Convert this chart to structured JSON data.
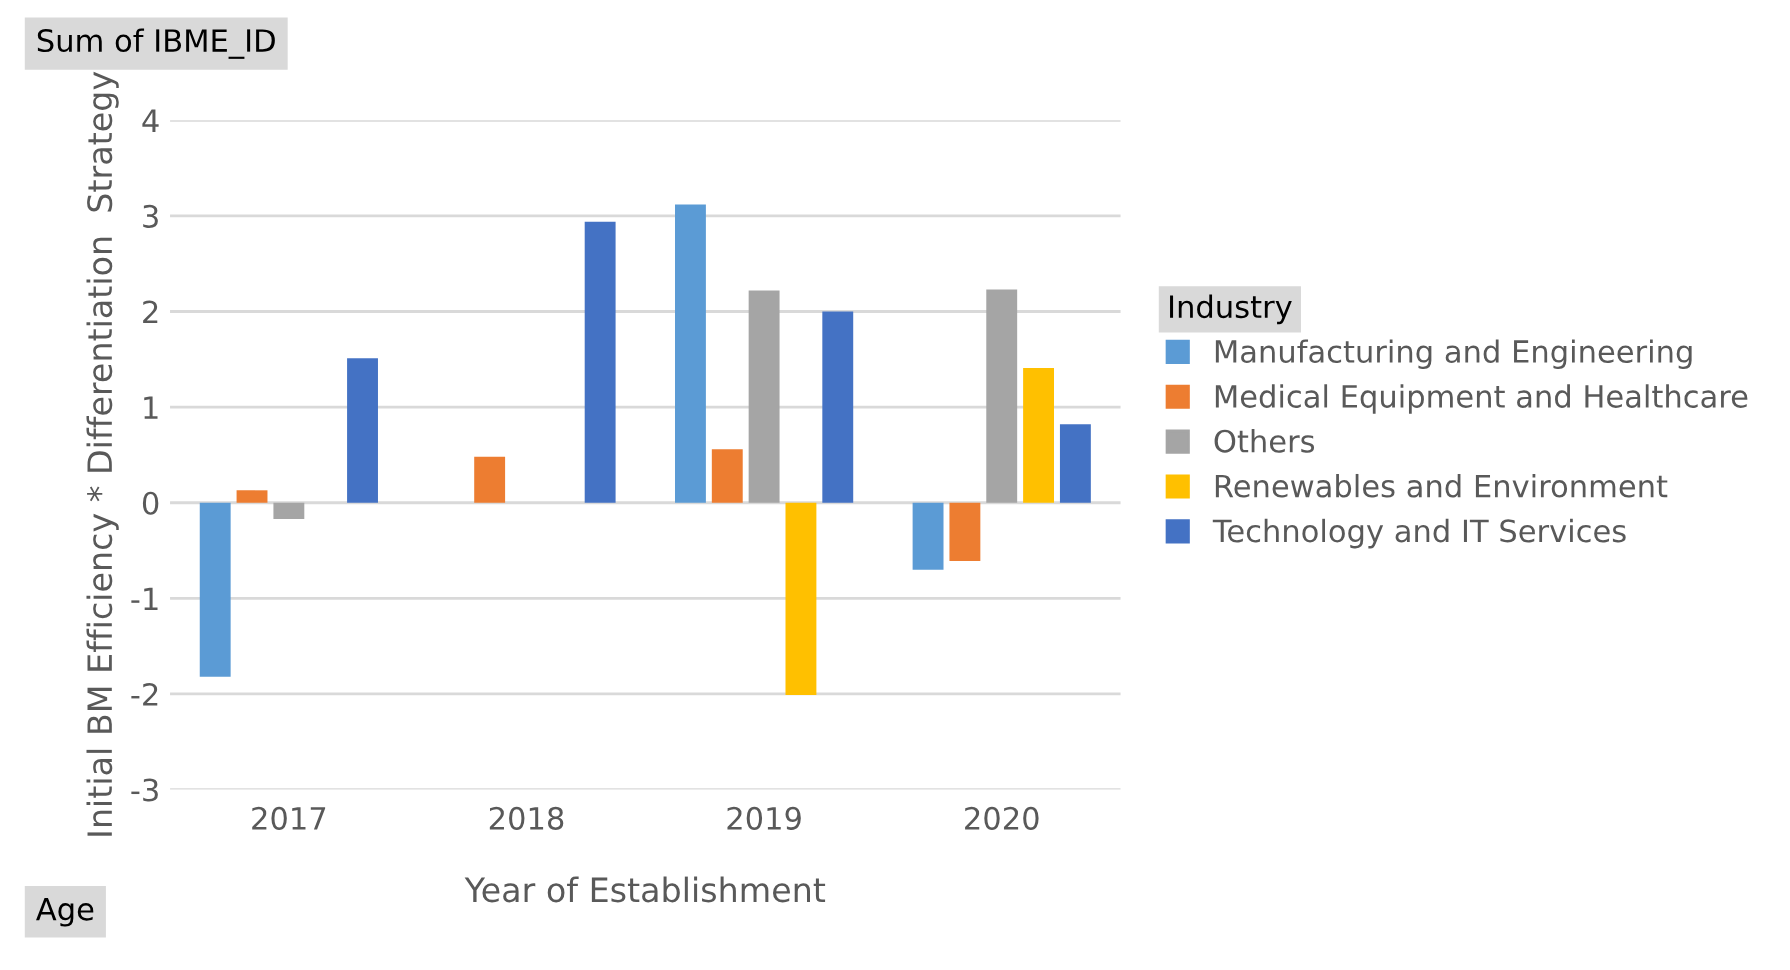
{
  "chart_data": {
    "type": "bar",
    "categories": [
      "2017",
      "2018",
      "2019",
      "2020"
    ],
    "xlabel": "Year of Establishment",
    "ylabel": "Initial BM Efficiency * Differentiation  Strategy",
    "legend_title": "Industry",
    "legend": "right",
    "grid": "y",
    "ylim": [
      -3,
      4
    ],
    "yticks": [
      -3,
      -2,
      -1,
      0,
      1,
      2,
      3,
      4
    ],
    "annotations": [
      "Sum of IBME_ID",
      "Age"
    ],
    "series": [
      {
        "name": "Manufacturing and Engineering",
        "color": "#5b9bd5",
        "values": [
          -1.82,
          0,
          3.12,
          -0.7
        ]
      },
      {
        "name": "Medical Equipment and Healthcare",
        "color": "#ed7d31",
        "values": [
          0.13,
          0.48,
          0.56,
          -0.61
        ]
      },
      {
        "name": "Others",
        "color": "#a5a5a5",
        "values": [
          -0.17,
          null,
          2.22,
          2.23
        ]
      },
      {
        "name": "Renewables and Environment",
        "color": "#ffc000",
        "values": [
          null,
          null,
          -2.01,
          1.41
        ]
      },
      {
        "name": "Technology and IT Services",
        "color": "#4472c4",
        "values": [
          1.51,
          2.94,
          2.0,
          0.82
        ]
      }
    ]
  }
}
